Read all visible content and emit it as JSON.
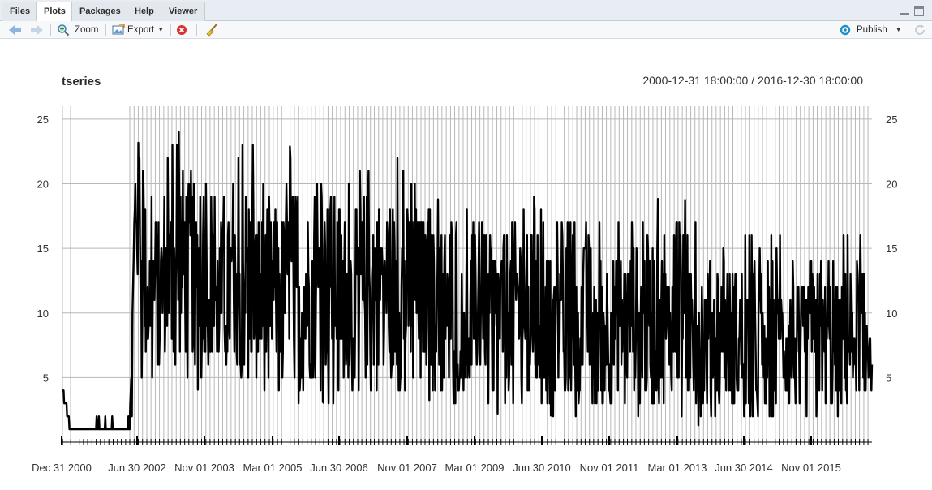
{
  "tabs": [
    "Files",
    "Plots",
    "Packages",
    "Help",
    "Viewer"
  ],
  "toolbar": {
    "zoom_label": "Zoom",
    "export_label": "Export",
    "publish_label": "Publish"
  },
  "chart_data": {
    "type": "line",
    "title": "tseries",
    "subtitle": "2000-12-31 18:00:00 / 2016-12-30 18:00:00",
    "x_tick_labels": [
      "Dec 31 2000",
      "Jun 30 2002",
      "Nov 01 2003",
      "Mar 01 2005",
      "Jun 30 2006",
      "Nov 01 2007",
      "Mar 01 2009",
      "Jun 30 2010",
      "Nov 01 2011",
      "Mar 01 2013",
      "Jun 30 2014",
      "Nov 01 2015"
    ],
    "y_ticks": [
      5,
      10,
      15,
      20,
      25
    ],
    "ylim": [
      0,
      26
    ],
    "xlim": [
      "2000-12-31",
      "2016-12-30"
    ],
    "grid": true,
    "series": [
      {
        "color": "#000000",
        "x": [
          "2000-12-31",
          "2001-03-01",
          "2001-07-01",
          "2001-11-01",
          "2002-03-01",
          "2002-05-01",
          "2002-06-15",
          "2002-09-01",
          "2003-01-01",
          "2003-05-01",
          "2003-09-01",
          "2004-01-01",
          "2004-05-01",
          "2004-09-01",
          "2005-01-01",
          "2005-05-01",
          "2005-09-01",
          "2006-01-01",
          "2006-05-01",
          "2006-09-01",
          "2007-01-01",
          "2007-05-01",
          "2007-09-01",
          "2008-01-01",
          "2008-05-01",
          "2008-09-01",
          "2009-01-01",
          "2009-05-01",
          "2009-09-01",
          "2010-01-01",
          "2010-05-01",
          "2010-09-01",
          "2011-01-01",
          "2011-05-01",
          "2011-09-01",
          "2012-01-01",
          "2012-05-01",
          "2012-09-01",
          "2013-01-01",
          "2013-05-01",
          "2013-09-01",
          "2014-01-01",
          "2014-05-01",
          "2014-09-01",
          "2015-01-01",
          "2015-05-01",
          "2015-09-01",
          "2016-01-01",
          "2016-05-01",
          "2016-09-01",
          "2016-12-30"
        ],
        "y": [
          4,
          1,
          2,
          1,
          2,
          1,
          20,
          11,
          12,
          14,
          13,
          11,
          12,
          13,
          11,
          12,
          12,
          11,
          13,
          11,
          12,
          13,
          11,
          12,
          11,
          12,
          10,
          11,
          10,
          11,
          10,
          9,
          9,
          10,
          9,
          9,
          10,
          9,
          9,
          10,
          8,
          9,
          8,
          8,
          7,
          8,
          7,
          8,
          7,
          9,
          8
        ],
        "y_min": [
          4,
          1,
          1,
          1,
          1,
          1,
          3,
          4,
          6,
          5,
          4,
          6,
          5,
          4,
          3,
          4,
          3,
          4,
          2,
          4,
          3,
          4,
          3,
          4,
          3,
          3,
          3,
          3,
          2,
          2,
          3,
          2,
          2,
          2,
          2,
          3,
          2,
          2,
          2,
          2,
          1,
          2,
          1,
          1,
          1,
          2,
          1,
          1,
          1,
          3,
          3
        ],
        "y_max": [
          4,
          2,
          2,
          2,
          2,
          2,
          24,
          20,
          21,
          26,
          20,
          20,
          21,
          25,
          21,
          20,
          26,
          20,
          21,
          20,
          23,
          20,
          23,
          20,
          18,
          21,
          20,
          17,
          18,
          19,
          19,
          18,
          18,
          17,
          18,
          18,
          17,
          20,
          16,
          19,
          17,
          15,
          17,
          16,
          16,
          16,
          14,
          15,
          16,
          18,
          14
        ]
      }
    ]
  }
}
